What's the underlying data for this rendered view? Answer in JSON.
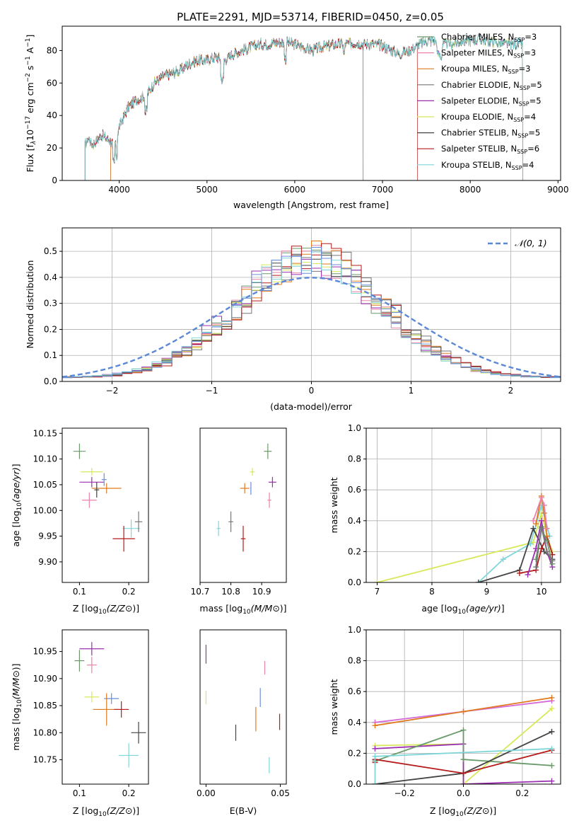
{
  "figure_title": "PLATE=2291, MJD=53714, FIBERID=0450, z=0.05",
  "colors": [
    "#6a9a6a",
    "#ea82ab",
    "#e07a1e",
    "#777777",
    "#9b2fb0",
    "#d8e85a",
    "#444444",
    "#b51b1b",
    "#7fd6d9",
    "#6a8ed8",
    "#d46ad8"
  ],
  "chart_data": [
    {
      "id": "spectrum",
      "type": "line",
      "title": "PLATE=2291, MJD=53714, FIBERID=0450, z=0.05",
      "xlabel": "wavelength [Angstrom, rest frame]",
      "ylabel": "Flux [f_λ 10^-17 erg cm^-2 s^-1 A^-1]",
      "xlim": [
        3350,
        9030
      ],
      "ylim": [
        0,
        95
      ],
      "xticks": [
        4000,
        5000,
        6000,
        7000,
        8000,
        9000
      ],
      "yticks": [
        0,
        20,
        40,
        60,
        80
      ],
      "grid": false,
      "legend_position": "upper-right",
      "legend": [
        "Chabrier MILES, N_SSP=3",
        "Salpeter MILES, N_SSP=3",
        "Kroupa MILES, N_SSP=3",
        "Chabrier ELODIE, N_SSP=5",
        "Salpeter ELODIE, N_SSP=5",
        "Kroupa ELODIE, N_SSP=4",
        "Chabrier STELIB, N_SSP=5",
        "Salpeter STELIB, N_SSP=6",
        "Kroupa STELIB, N_SSP=4"
      ],
      "continuum_x": [
        3610,
        3650,
        3700,
        3800,
        3900,
        3950,
        4000,
        4100,
        4200,
        4300,
        4400,
        4500,
        4600,
        4700,
        4800,
        4900,
        5000,
        5100,
        5200,
        5300,
        5400,
        5500,
        5600,
        5700,
        5800,
        5900,
        6000,
        6100,
        6200,
        6300,
        6400,
        6500,
        6600,
        6700,
        6800,
        6900,
        7000,
        7100,
        7200,
        7300,
        7400,
        7500,
        7600,
        7700,
        7800,
        7900,
        8000,
        8100,
        8200,
        8300,
        8400,
        8500,
        8600,
        8700
      ],
      "continuum_y": [
        22,
        26,
        22,
        28,
        24,
        22,
        33,
        45,
        50,
        52,
        60,
        64,
        66,
        68,
        72,
        74,
        74,
        76,
        74,
        78,
        80,
        82,
        84,
        84,
        85,
        85,
        84,
        82,
        80,
        82,
        83,
        84,
        84,
        85,
        84,
        84,
        83,
        80,
        78,
        80,
        83,
        86,
        86,
        84,
        84,
        86,
        86,
        87,
        86,
        85,
        84,
        84,
        84,
        82
      ],
      "model_ranges": [
        [
          3900,
          6780
        ],
        [
          3900,
          6780
        ],
        [
          3900,
          6780
        ],
        [
          3610,
          8600
        ],
        [
          3610,
          8600
        ],
        [
          3610,
          8600
        ],
        [
          3610,
          8600
        ],
        [
          3610,
          7400
        ],
        [
          3610,
          8600
        ]
      ]
    },
    {
      "id": "residual_hist",
      "type": "bar",
      "xlabel": "(data-model)/error",
      "ylabel": "Normed distribution",
      "xlim": [
        -2.5,
        2.5
      ],
      "ylim": [
        0,
        0.59
      ],
      "xticks": [
        -2,
        -1,
        0,
        1,
        2
      ],
      "yticks": [
        0.0,
        0.1,
        0.2,
        0.3,
        0.4,
        0.5
      ],
      "grid": true,
      "legend_position": "upper-right",
      "legend": [
        "N(0,1)"
      ],
      "bin_width": 0.1,
      "hist_peak": 0.46
    },
    {
      "id": "age_vs_Z",
      "type": "scatter",
      "xlabel": "Z [log10(Z/Z_sun)]",
      "ylabel": "age  [log10(age/yr)]",
      "xlim": [
        0.065,
        0.24
      ],
      "ylim": [
        9.86,
        10.16
      ],
      "xticks": [
        0.1,
        0.2
      ],
      "yticks": [
        9.9,
        9.95,
        10.0,
        10.05,
        10.1,
        10.15
      ],
      "points": [
        {
          "x": 0.1,
          "y": 10.115,
          "xe": 0.025,
          "ye": 0.03,
          "c": 0
        },
        {
          "x": 0.125,
          "y": 10.075,
          "xe": 0.045,
          "ye": 0.015,
          "c": 5
        },
        {
          "x": 0.125,
          "y": 10.055,
          "xe": 0.05,
          "ye": 0.02,
          "c": 4
        },
        {
          "x": 0.155,
          "y": 10.043,
          "xe": 0.06,
          "ye": 0.02,
          "c": 2
        },
        {
          "x": 0.15,
          "y": 10.06,
          "xe": 0.01,
          "ye": 0.025,
          "c": 9
        },
        {
          "x": 0.135,
          "y": 10.04,
          "xe": 0.01,
          "ye": 0.03,
          "c": 6
        },
        {
          "x": 0.12,
          "y": 10.02,
          "xe": 0.03,
          "ye": 0.03,
          "c": 1
        },
        {
          "x": 0.205,
          "y": 9.965,
          "xe": 0.035,
          "ye": 0.035,
          "c": 8
        },
        {
          "x": 0.22,
          "y": 9.978,
          "xe": 0.015,
          "ye": 0.04,
          "c": 3
        },
        {
          "x": 0.19,
          "y": 9.945,
          "xe": 0.045,
          "ye": 0.05,
          "c": 7
        }
      ]
    },
    {
      "id": "age_vs_mass",
      "type": "scatter",
      "xlabel": "mass [log10(M/M_sun)]",
      "ylabel": "",
      "xlim": [
        10.7,
        10.98
      ],
      "ylim": [
        9.86,
        10.16
      ],
      "xticks": [
        10.7,
        10.8,
        10.9
      ],
      "points": [
        {
          "x": 10.92,
          "y": 10.115,
          "xe": 0.025,
          "ye": 0.03,
          "c": 0
        },
        {
          "x": 10.87,
          "y": 10.075,
          "xe": 0.015,
          "ye": 0.015,
          "c": 5
        },
        {
          "x": 10.935,
          "y": 10.055,
          "xe": 0.025,
          "ye": 0.02,
          "c": 4
        },
        {
          "x": 10.845,
          "y": 10.043,
          "xe": 0.03,
          "ye": 0.02,
          "c": 2
        },
        {
          "x": 10.865,
          "y": 10.043,
          "xe": 0.003,
          "ye": 0.025,
          "c": 9
        },
        {
          "x": 10.925,
          "y": 10.02,
          "xe": 0.012,
          "ye": 0.03,
          "c": 1
        },
        {
          "x": 10.76,
          "y": 9.965,
          "xe": 0.012,
          "ye": 0.03,
          "c": 8
        },
        {
          "x": 10.8,
          "y": 9.978,
          "xe": 0.015,
          "ye": 0.04,
          "c": 3
        },
        {
          "x": 10.84,
          "y": 9.945,
          "xe": 0.015,
          "ye": 0.05,
          "c": 7
        }
      ]
    },
    {
      "id": "massweight_vs_age",
      "type": "line",
      "xlabel": "age  [log10(age/yr)]",
      "ylabel": "mass weight",
      "xlim": [
        6.8,
        10.35
      ],
      "ylim": [
        0,
        1
      ],
      "xticks": [
        7,
        8,
        9,
        10
      ],
      "yticks": [
        0.0,
        0.2,
        0.4,
        0.6,
        0.8,
        1.0
      ],
      "grid": true,
      "series": [
        {
          "c": 5,
          "x": [
            7.0,
            9.85,
            10.0,
            10.1,
            10.2
          ],
          "y": [
            0.0,
            0.26,
            0.45,
            0.3,
            0.2
          ]
        },
        {
          "c": 8,
          "x": [
            8.85,
            9.3,
            9.8,
            10.0,
            10.15
          ],
          "y": [
            0.0,
            0.15,
            0.25,
            0.5,
            0.3
          ]
        },
        {
          "c": 6,
          "x": [
            8.85,
            9.6,
            9.85,
            10.05,
            10.2
          ],
          "y": [
            0.0,
            0.08,
            0.35,
            0.2,
            0.15
          ]
        },
        {
          "c": 7,
          "x": [
            9.6,
            9.9,
            10.0,
            10.1,
            10.2
          ],
          "y": [
            0.06,
            0.08,
            0.22,
            0.3,
            0.18
          ]
        },
        {
          "c": 2,
          "x": [
            9.9,
            10.0,
            10.05,
            10.1
          ],
          "y": [
            0.38,
            0.56,
            0.45,
            0.3
          ]
        },
        {
          "c": 1,
          "x": [
            9.85,
            10.0,
            10.05,
            10.1
          ],
          "y": [
            0.4,
            0.55,
            0.5,
            0.35
          ]
        },
        {
          "c": 4,
          "x": [
            9.75,
            9.9,
            10.0,
            10.1,
            10.2
          ],
          "y": [
            0.05,
            0.22,
            0.4,
            0.2,
            0.1
          ]
        },
        {
          "c": 0,
          "x": [
            9.9,
            10.0,
            10.1,
            10.2
          ],
          "y": [
            0.15,
            0.35,
            0.27,
            0.12
          ]
        },
        {
          "c": 3,
          "x": [
            9.9,
            10.0,
            10.1,
            10.2
          ],
          "y": [
            0.1,
            0.36,
            0.2,
            0.14
          ]
        }
      ]
    },
    {
      "id": "mass_vs_Z",
      "type": "scatter",
      "xlabel": "Z [log10(Z/Z_sun)]",
      "ylabel": "mass [log10(M/M_sun)]",
      "xlim": [
        0.065,
        0.24
      ],
      "ylim": [
        10.705,
        10.99
      ],
      "xticks": [
        0.1,
        0.2
      ],
      "yticks": [
        10.75,
        10.8,
        10.85,
        10.9,
        10.95
      ],
      "points": [
        {
          "x": 0.125,
          "y": 10.955,
          "xe": 0.05,
          "ye": 0.025,
          "c": 4
        },
        {
          "x": 0.1,
          "y": 10.933,
          "xe": 0.02,
          "ye": 0.04,
          "c": 0
        },
        {
          "x": 0.125,
          "y": 10.925,
          "xe": 0.02,
          "ye": 0.03,
          "c": 1
        },
        {
          "x": 0.125,
          "y": 10.866,
          "xe": 0.03,
          "ye": 0.02,
          "c": 5
        },
        {
          "x": 0.165,
          "y": 10.863,
          "xe": 0.03,
          "ye": 0.02,
          "c": 9
        },
        {
          "x": 0.155,
          "y": 10.843,
          "xe": 0.055,
          "ye": 0.06,
          "c": 2
        },
        {
          "x": 0.185,
          "y": 10.843,
          "xe": 0.03,
          "ye": 0.03,
          "c": 7
        },
        {
          "x": 0.22,
          "y": 10.8,
          "xe": 0.03,
          "ye": 0.04,
          "c": 6
        },
        {
          "x": 0.2,
          "y": 10.758,
          "xe": 0.04,
          "ye": 0.045,
          "c": 8
        }
      ]
    },
    {
      "id": "mass_vs_EBV",
      "type": "scatter",
      "xlabel": "E(B-V)",
      "ylabel": "",
      "xlim": [
        -0.004,
        0.054
      ],
      "ylim": [
        10.705,
        10.99
      ],
      "xticks": [
        0.0,
        0.05
      ],
      "points": [
        {
          "x": 0.0,
          "y": 10.945,
          "ye": 0.035,
          "c": 4
        },
        {
          "x": 0.0,
          "y": 10.865,
          "ye": 0.025,
          "c": 5
        },
        {
          "x": 0.02,
          "y": 10.8,
          "ye": 0.03,
          "c": 6
        },
        {
          "x": 0.0335,
          "y": 10.825,
          "ye": 0.045,
          "c": 2
        },
        {
          "x": 0.0365,
          "y": 10.865,
          "ye": 0.035,
          "c": 9
        },
        {
          "x": 0.0395,
          "y": 10.92,
          "ye": 0.025,
          "c": 1
        },
        {
          "x": 0.0425,
          "y": 10.74,
          "ye": 0.03,
          "c": 8
        },
        {
          "x": 0.0495,
          "y": 10.82,
          "ye": 0.03,
          "c": 7
        }
      ]
    },
    {
      "id": "massweight_vs_Z",
      "type": "line",
      "xlabel": "Z [log10(Z/Z_sun)]",
      "ylabel": "mass weight",
      "xlim": [
        -0.33,
        0.33
      ],
      "ylim": [
        0,
        1
      ],
      "xticks": [
        -0.2,
        0.0,
        0.2
      ],
      "yticks": [
        0.0,
        0.2,
        0.4,
        0.6,
        0.8,
        1.0
      ],
      "grid": true,
      "series": [
        {
          "c": 10,
          "x": [
            -0.3,
            0.0,
            0.3
          ],
          "y": [
            0.4,
            0.47,
            0.54
          ]
        },
        {
          "c": 2,
          "x": [
            -0.3,
            0.0,
            0.3
          ],
          "y": [
            0.38,
            0.47,
            0.56
          ]
        },
        {
          "c": 5,
          "x": [
            -0.3,
            0.0,
            0.0,
            0.3
          ],
          "y": [
            0.25,
            0.26,
            0.0,
            0.49
          ]
        },
        {
          "c": 4,
          "x": [
            -0.3,
            0.0,
            0.0,
            0.3
          ],
          "y": [
            0.23,
            0.26,
            0.0,
            0.02
          ]
        },
        {
          "c": 0,
          "x": [
            -0.3,
            0.0,
            0.0,
            0.3
          ],
          "y": [
            0.15,
            0.35,
            0.16,
            0.12
          ]
        },
        {
          "c": 6,
          "x": [
            -0.3,
            0.0,
            0.3
          ],
          "y": [
            0.0,
            0.07,
            0.34
          ]
        },
        {
          "c": 7,
          "x": [
            -0.3,
            -0.3,
            0.0,
            0.3
          ],
          "y": [
            0.14,
            0.16,
            0.07,
            0.22
          ]
        },
        {
          "c": 8,
          "x": [
            -0.3,
            -0.3,
            0.3
          ],
          "y": [
            0.0,
            0.18,
            0.23
          ]
        }
      ]
    }
  ],
  "labels": {
    "spectrum_ylabel": "Flux [f",
    "hist_legend": "𝒩(0, 1)",
    "age_ylabel": "age  [log",
    "mass_ylabel": "mass [log"
  }
}
